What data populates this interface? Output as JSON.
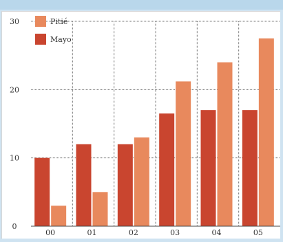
{
  "colors": {
    "background": "#cfe3f1",
    "panel": "#ffffff",
    "grid": "#6f6f6f",
    "series_pitie": "#e8895d",
    "series_mayo": "#c9452f"
  },
  "chart_data": {
    "type": "bar",
    "title": "",
    "xlabel": "",
    "ylabel": "",
    "categories": [
      "00",
      "01",
      "02",
      "03",
      "04",
      "05"
    ],
    "series": [
      {
        "name": "Mayo",
        "values": [
          10,
          12,
          12,
          16.5,
          17,
          17
        ]
      },
      {
        "name": "Pitié",
        "values": [
          3,
          5,
          13,
          21.2,
          24,
          27.5
        ]
      }
    ],
    "ylim": [
      0,
      30
    ],
    "yticks": [
      0,
      10,
      20,
      30
    ],
    "grid": true,
    "legend_position": "top-left"
  }
}
